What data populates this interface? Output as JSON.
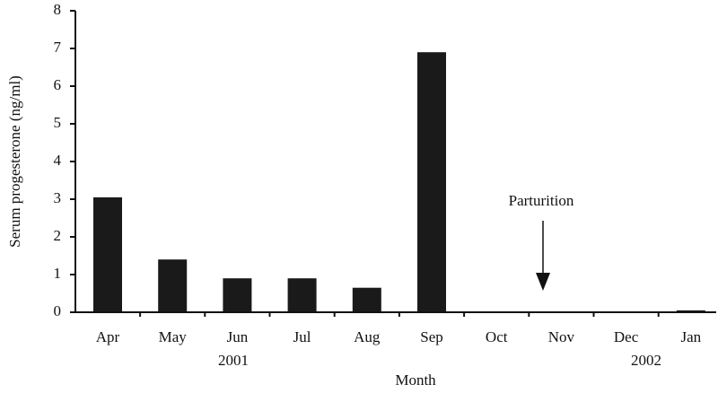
{
  "chart_data": {
    "type": "bar",
    "ylabel": "Serum progesterone (ng/ml)",
    "xlabel": "Month",
    "categories": [
      "Apr",
      "May",
      "Jun",
      "Jul",
      "Aug",
      "Sep",
      "Oct",
      "Nov",
      "Dec",
      "Jan"
    ],
    "values": [
      3.05,
      1.4,
      0.9,
      0.9,
      0.65,
      6.9,
      0,
      0,
      0,
      0.05
    ],
    "color": "#1a1a1a",
    "year_labels": [
      "2001",
      "2002"
    ],
    "annotation": "Parturition",
    "ylim": [
      0,
      8
    ],
    "yticks": [
      0,
      1,
      2,
      3,
      4,
      5,
      6,
      7,
      8
    ],
    "grid": false
  }
}
